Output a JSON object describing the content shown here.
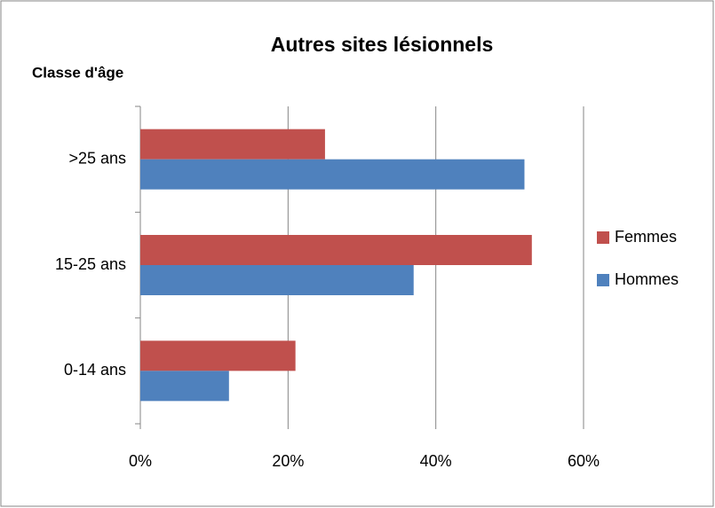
{
  "chart_data": {
    "type": "bar",
    "orientation": "horizontal",
    "title": "Autres sites lésionnels",
    "y_label": "Classe d'âge",
    "categories": [
      "0-14 ans",
      "15-25 ans",
      ">25 ans"
    ],
    "series": [
      {
        "name": "Femmes",
        "color": "#c0504d",
        "values": [
          21,
          53,
          25
        ]
      },
      {
        "name": "Hommes",
        "color": "#4f81bd",
        "values": [
          12,
          37,
          52
        ]
      }
    ],
    "xlim": [
      0,
      60
    ],
    "xticks": [
      {
        "value": 0,
        "label": "0%"
      },
      {
        "value": 20,
        "label": "20%"
      },
      {
        "value": 40,
        "label": "40%"
      },
      {
        "value": 60,
        "label": "60%"
      }
    ],
    "grid": true,
    "legend": "right"
  }
}
